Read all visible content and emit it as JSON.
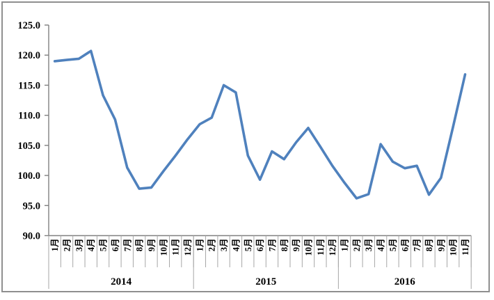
{
  "chart_data": {
    "type": "line",
    "title": "",
    "xlabel": "",
    "ylabel": "",
    "ylim": [
      90,
      125
    ],
    "ytick_step": 5,
    "ytick_labels": [
      "125.0",
      "120.0",
      "115.0",
      "110.0",
      "105.0",
      "100.0",
      "95.0",
      "90.0"
    ],
    "grid": false,
    "legend_position": "none",
    "line_color": "#4F81BD",
    "axis_color": "#808080",
    "separator_color": "#A6A6A6",
    "x_groups": [
      {
        "year": "2014",
        "months": [
          "1月",
          "2月",
          "3月",
          "4月",
          "5月",
          "6月",
          "7月",
          "8月",
          "9月",
          "10月",
          "11月",
          "12月"
        ]
      },
      {
        "year": "2015",
        "months": [
          "1月",
          "2月",
          "3月",
          "4月",
          "5月",
          "6月",
          "7月",
          "8月",
          "9月",
          "10月",
          "11月",
          "12月"
        ]
      },
      {
        "year": "2016",
        "months": [
          "1月",
          "2月",
          "3月",
          "4月",
          "5月",
          "6月",
          "7月",
          "8月",
          "9月",
          "10月",
          "11月"
        ]
      }
    ],
    "series": [
      {
        "name": "",
        "values": [
          119.0,
          119.2,
          119.4,
          120.7,
          113.3,
          109.3,
          101.3,
          97.8,
          98.0,
          100.7,
          103.3,
          106.0,
          108.5,
          109.6,
          115.0,
          113.8,
          103.3,
          99.3,
          104.0,
          102.7,
          105.5,
          107.9,
          104.8,
          101.6,
          98.8,
          96.2,
          96.9,
          105.2,
          102.3,
          101.2,
          101.6,
          96.8,
          99.6,
          108.1,
          116.8
        ]
      }
    ]
  }
}
